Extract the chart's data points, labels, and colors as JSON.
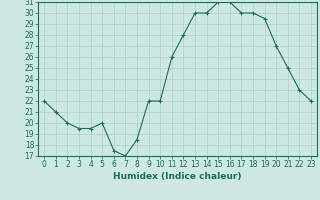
{
  "x": [
    0,
    1,
    2,
    3,
    4,
    5,
    6,
    7,
    8,
    9,
    10,
    11,
    12,
    13,
    14,
    15,
    16,
    17,
    18,
    19,
    20,
    21,
    22,
    23
  ],
  "y": [
    22,
    21,
    20,
    19.5,
    19.5,
    20,
    17.5,
    17,
    18.5,
    22,
    22,
    26,
    28,
    30,
    30,
    31,
    31,
    30,
    30,
    29.5,
    27,
    25,
    23,
    22
  ],
  "line_color": "#1a6e5e",
  "marker_color": "#1a6e5e",
  "bg_color": "#cde8e2",
  "grid_color": "#aecfc8",
  "xlabel": "Humidex (Indice chaleur)",
  "ylim": [
    17,
    31
  ],
  "xlim": [
    -0.5,
    23.5
  ],
  "yticks": [
    17,
    18,
    19,
    20,
    21,
    22,
    23,
    24,
    25,
    26,
    27,
    28,
    29,
    30,
    31
  ],
  "xticks": [
    0,
    1,
    2,
    3,
    4,
    5,
    6,
    7,
    8,
    9,
    10,
    11,
    12,
    13,
    14,
    15,
    16,
    17,
    18,
    19,
    20,
    21,
    22,
    23
  ],
  "tick_fontsize": 5.5,
  "xlabel_fontsize": 6.5
}
